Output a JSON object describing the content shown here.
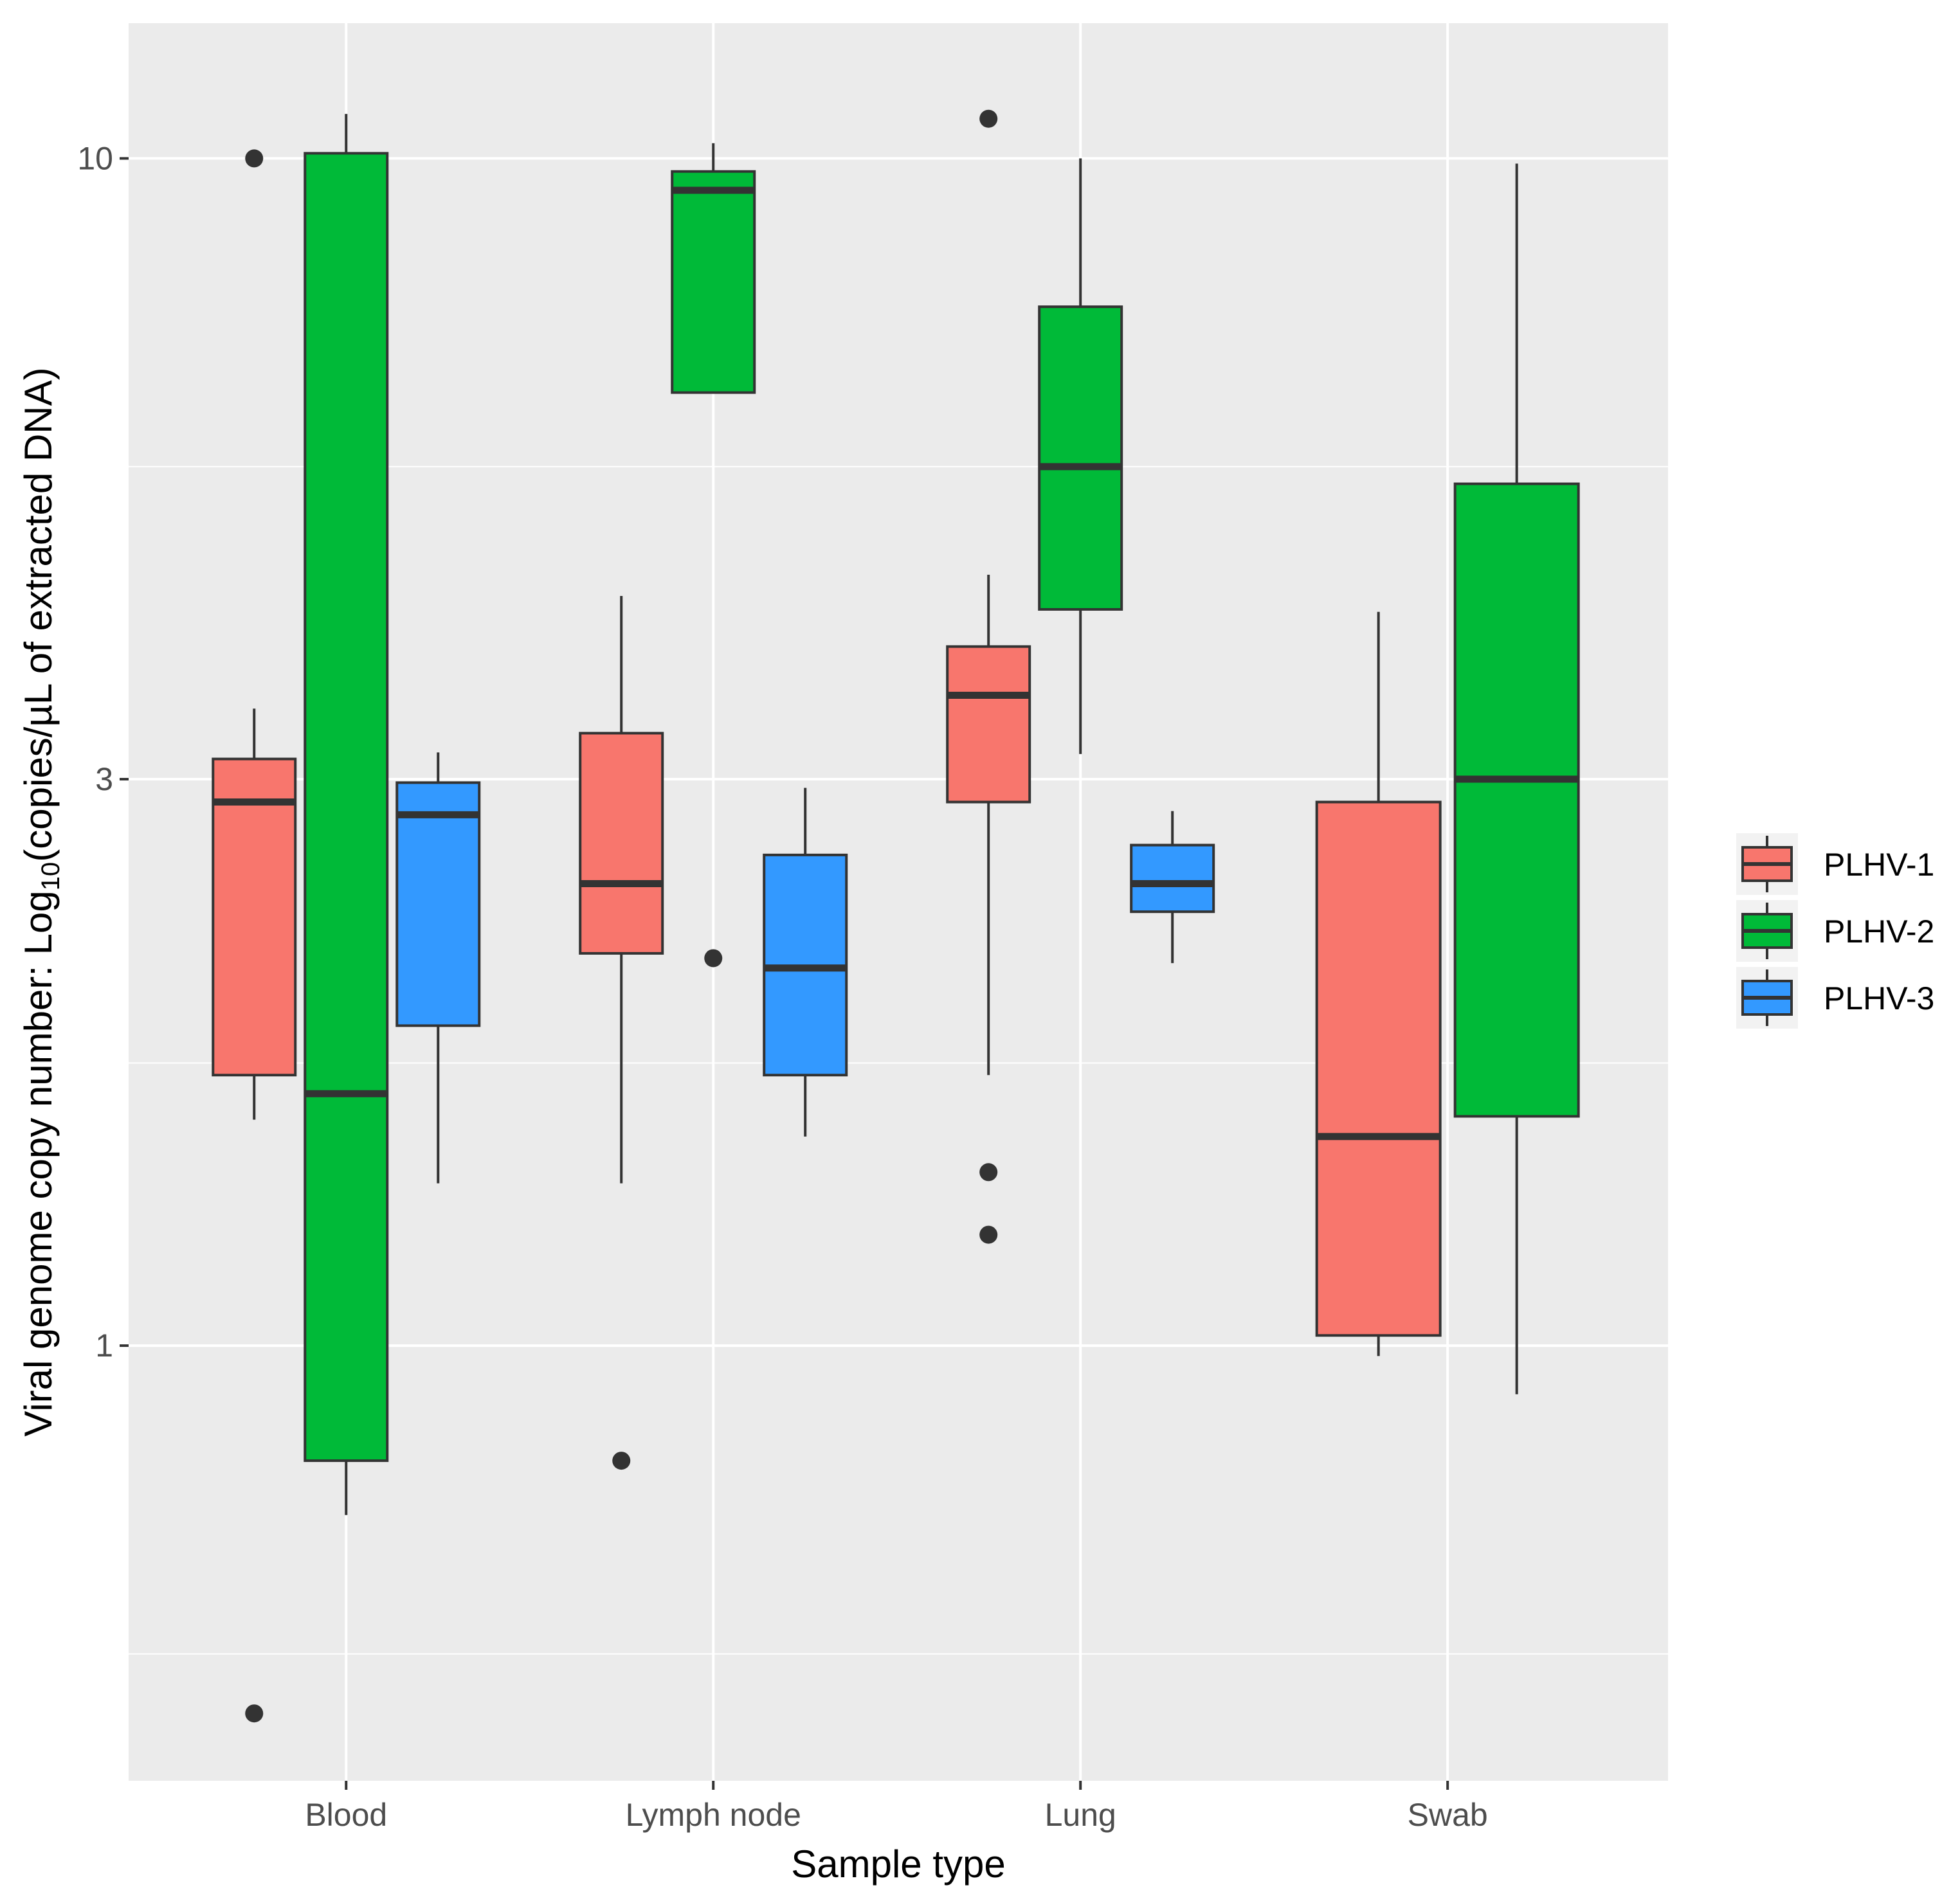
{
  "chart_data": {
    "type": "boxplot",
    "title": "",
    "xlabel": "Sample type",
    "ylabel_main": "Viral genome copy number: Log",
    "ylabel_sub": "10",
    "ylabel_rest": "(copies/µL of extracted DNA)",
    "yscale": "log10",
    "ylim": [
      0.43,
      13.0
    ],
    "yticks": [
      {
        "value": 1,
        "label": "1"
      },
      {
        "value": 3,
        "label": "3"
      },
      {
        "value": 10,
        "label": "10"
      }
    ],
    "yminor": [
      0.55,
      1.73,
      5.5
    ],
    "categories": [
      "Blood",
      "Lymph node",
      "Lung",
      "Swab"
    ],
    "legend_position": "right",
    "series": [
      {
        "name": "PLHV-1",
        "color": "#F8766D",
        "boxes": [
          {
            "category": "Blood",
            "whisker_low": 1.55,
            "q1": 1.69,
            "median": 2.87,
            "q3": 3.12,
            "whisker_high": 3.44,
            "outliers": [
              10.0,
              0.49
            ]
          },
          {
            "category": "Lymph node",
            "whisker_low": 1.37,
            "q1": 2.14,
            "median": 2.45,
            "q3": 3.28,
            "whisker_high": 4.28,
            "outliers": [
              0.8
            ]
          },
          {
            "category": "Lung",
            "whisker_low": 1.69,
            "q1": 2.87,
            "median": 3.53,
            "q3": 3.88,
            "whisker_high": 4.46,
            "outliers": [
              10.8,
              1.4,
              1.24
            ]
          },
          {
            "category": "Swab",
            "whisker_low": 0.98,
            "q1": 1.02,
            "median": 1.5,
            "q3": 2.87,
            "whisker_high": 4.15,
            "outliers": []
          }
        ]
      },
      {
        "name": "PLHV-2",
        "color": "#00BA38",
        "boxes": [
          {
            "category": "Blood",
            "whisker_low": 0.72,
            "q1": 0.8,
            "median": 1.63,
            "q3": 10.1,
            "whisker_high": 10.9,
            "outliers": []
          },
          {
            "category": "Lymph node",
            "q1": 6.35,
            "median": 9.4,
            "q3": 9.75,
            "whisker_high": 10.3,
            "outliers": [
              2.12
            ]
          },
          {
            "category": "Lung",
            "whisker_low": 3.15,
            "q1": 4.17,
            "median": 5.5,
            "q3": 7.5,
            "whisker_high": 10.0,
            "outliers": []
          },
          {
            "category": "Swab",
            "whisker_low": 0.91,
            "q1": 1.56,
            "median": 3.0,
            "q3": 5.32,
            "whisker_high": 9.9,
            "outliers": []
          }
        ]
      },
      {
        "name": "PLHV-3",
        "color": "#3399FF",
        "boxes": [
          {
            "category": "Blood",
            "whisker_low": 1.37,
            "q1": 1.86,
            "median": 2.8,
            "q3": 2.98,
            "whisker_high": 3.16,
            "outliers": []
          },
          {
            "category": "Lymph node",
            "whisker_low": 1.5,
            "q1": 1.69,
            "median": 2.08,
            "q3": 2.59,
            "whisker_high": 2.95,
            "outliers": []
          },
          {
            "category": "Lung",
            "whisker_low": 2.1,
            "q1": 2.32,
            "median": 2.45,
            "q3": 2.64,
            "whisker_high": 2.82,
            "outliers": []
          }
        ]
      }
    ]
  }
}
